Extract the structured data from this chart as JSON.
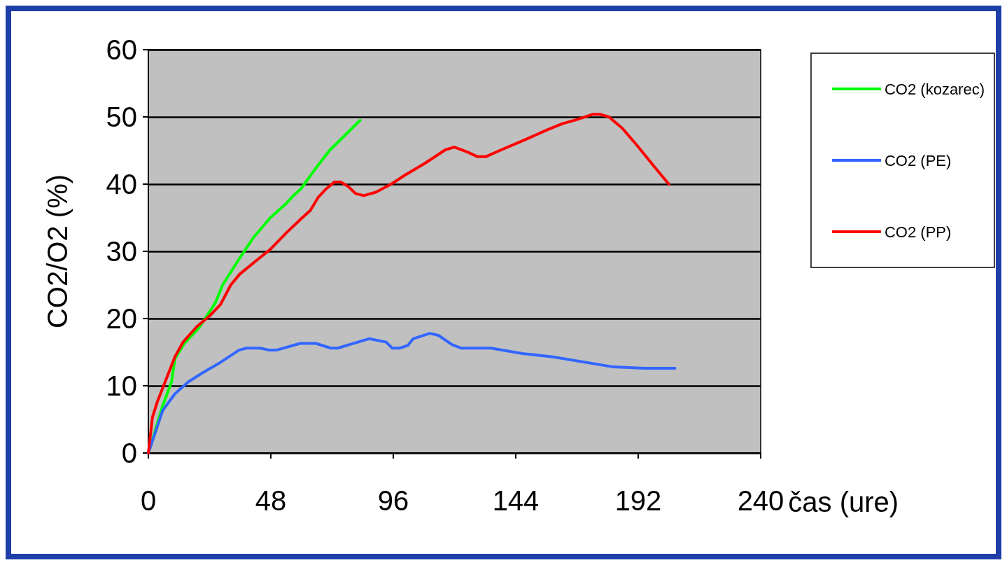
{
  "chart_data": {
    "type": "line",
    "xlabel": "čas (ure)",
    "ylabel": "CO2/O2 (%)",
    "xlim": [
      0,
      240
    ],
    "xticks": [
      0,
      48,
      96,
      144,
      192,
      240
    ],
    "ylim": [
      0,
      60
    ],
    "yticks": [
      0,
      10,
      20,
      30,
      40,
      50,
      60
    ],
    "grid": "y",
    "legend": "right",
    "marker": "none",
    "line_style": "solid",
    "series": [
      {
        "name": "CO2 (kozarec)",
        "color": "#00ff00",
        "x": [
          0,
          5.6,
          9.1,
          10.4,
          14.1,
          19.8,
          26.2,
          29.1,
          35.8,
          41.1,
          47.8,
          53.7,
          56.9,
          59.8,
          65.1,
          71,
          83
        ],
        "values": [
          0,
          7,
          10.6,
          14,
          16.3,
          18.6,
          22.3,
          25,
          29,
          32,
          35,
          37,
          38.3,
          39.3,
          42.1,
          45,
          49.5
        ]
      },
      {
        "name": "CO2 (PE)",
        "color": "#3366ff",
        "x": [
          0,
          5.6,
          10.4,
          15.7,
          21.6,
          27.5,
          32.3,
          35.5,
          38.4,
          43.8,
          47.5,
          50.2,
          59.5,
          65.7,
          71.5,
          74.2,
          86.5,
          93.2,
          95.6,
          98.5,
          101.7,
          103.8,
          110.3,
          113.7,
          119.1,
          122.5,
          134.3,
          146.6,
          158.6,
          182.3,
          194.6,
          206.4
        ],
        "values": [
          0,
          6.3,
          8.8,
          10.6,
          12,
          13.3,
          14.5,
          15.3,
          15.6,
          15.6,
          15.3,
          15.3,
          16.3,
          16.3,
          15.6,
          15.6,
          17,
          16.5,
          15.6,
          15.6,
          16,
          17,
          17.8,
          17.5,
          16.1,
          15.6,
          15.6,
          14.8,
          14.3,
          12.8,
          12.6,
          12.6
        ]
      },
      {
        "name": "CO2 (PP)",
        "color": "#ff0000",
        "x": [
          0,
          1.6,
          3.5,
          10.4,
          13.6,
          19,
          24.3,
          28.3,
          32.3,
          35.8,
          42.2,
          47.8,
          54.2,
          60.3,
          63.5,
          66.5,
          69.7,
          72.9,
          75.5,
          78.5,
          81.2,
          84.4,
          89.2,
          95.6,
          100.4,
          108.4,
          116.4,
          119.9,
          124.9,
          128.9,
          132.4,
          137.7,
          147.6,
          155.9,
          162.3,
          167.9,
          174.3,
          177,
          180.5,
          185.8,
          191.9,
          198.3,
          204
        ],
        "values": [
          0,
          5.3,
          7.6,
          14.3,
          16.5,
          18.8,
          20.5,
          22.1,
          25,
          26.6,
          28.6,
          30.3,
          32.8,
          35,
          36.1,
          38,
          39.3,
          40.3,
          40.3,
          39.6,
          38.6,
          38.3,
          38.8,
          40.1,
          41.3,
          43.1,
          45.1,
          45.5,
          44.8,
          44.1,
          44.1,
          45,
          46.6,
          48,
          49,
          49.6,
          50.4,
          50.4,
          50,
          48.3,
          45.6,
          42.6,
          40
        ]
      }
    ]
  }
}
